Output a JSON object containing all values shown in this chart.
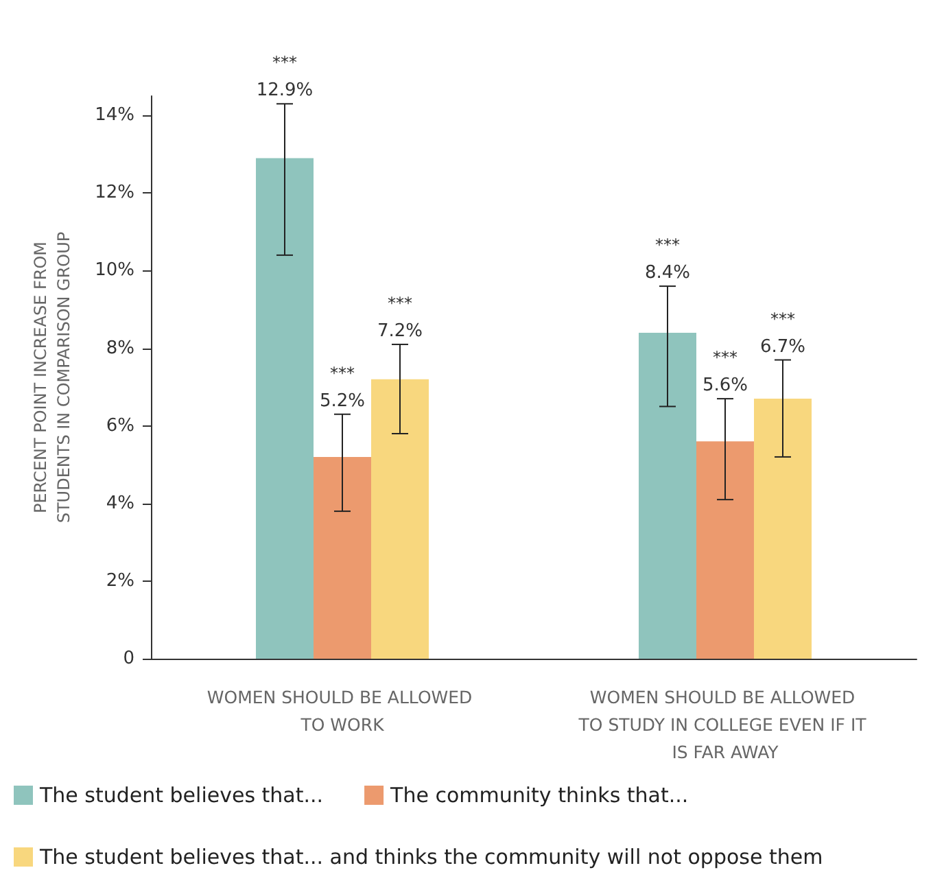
{
  "chart_data": {
    "type": "bar",
    "ylabel": "PERCENT POINT INCREASE FROM STUDENTS IN COMPARISON GROUP",
    "categories": [
      "WOMEN SHOULD BE ALLOWED TO WORK",
      "WOMEN SHOULD BE ALLOWED TO STUDY IN COLLEGE EVEN IF IT IS FAR AWAY"
    ],
    "series": [
      {
        "name": "The student believes that...",
        "color": "#8fc4bd",
        "values": [
          12.9,
          8.4
        ],
        "errors": [
          [
            10.4,
            14.3
          ],
          [
            6.5,
            9.6
          ]
        ],
        "value_labels": [
          "12.9%",
          "8.4%"
        ]
      },
      {
        "name": "The community thinks that...",
        "color": "#ec9a6e",
        "values": [
          5.2,
          5.6
        ],
        "errors": [
          [
            3.8,
            6.3
          ],
          [
            4.1,
            6.7
          ]
        ],
        "value_labels": [
          "5.2%",
          "5.6%"
        ]
      },
      {
        "name": "The student believes that... and thinks the community will not oppose them",
        "color": "#f8d77e",
        "values": [
          7.2,
          6.7
        ],
        "errors": [
          [
            5.8,
            8.1
          ],
          [
            5.2,
            7.7
          ]
        ],
        "value_labels": [
          "7.2%",
          "6.7%"
        ]
      }
    ],
    "annotations": [
      "***",
      "***",
      "***",
      "***",
      "***",
      "***"
    ],
    "ylim": [
      0,
      14.5
    ],
    "yticks": [
      {
        "value": 0,
        "label": "0"
      },
      {
        "value": 2,
        "label": "2%"
      },
      {
        "value": 4,
        "label": "4%"
      },
      {
        "value": 6,
        "label": "6%"
      },
      {
        "value": 8,
        "label": "8%"
      },
      {
        "value": 10,
        "label": "10%"
      },
      {
        "value": 12,
        "label": "12%"
      },
      {
        "value": 14,
        "label": "14%"
      }
    ],
    "grid": false,
    "legend": "bottom"
  }
}
